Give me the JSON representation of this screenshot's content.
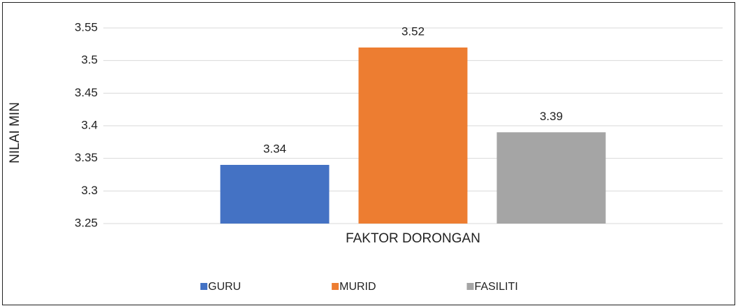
{
  "chart_data": {
    "type": "bar",
    "categories": [
      "FAKTOR DORONGAN"
    ],
    "ylabel": "NILAI MIN",
    "series": [
      {
        "name": "GURU",
        "color": "#4472c4",
        "values": [
          3.34
        ]
      },
      {
        "name": "MURID",
        "color": "#ed7d31",
        "values": [
          3.52
        ]
      },
      {
        "name": "FASILITI",
        "color": "#a5a5a5",
        "values": [
          3.39
        ]
      }
    ],
    "ylim": [
      3.25,
      3.55
    ],
    "yticks": [
      3.25,
      3.3,
      3.35,
      3.4,
      3.45,
      3.5,
      3.55
    ],
    "grid": true,
    "legend": "bottom"
  }
}
